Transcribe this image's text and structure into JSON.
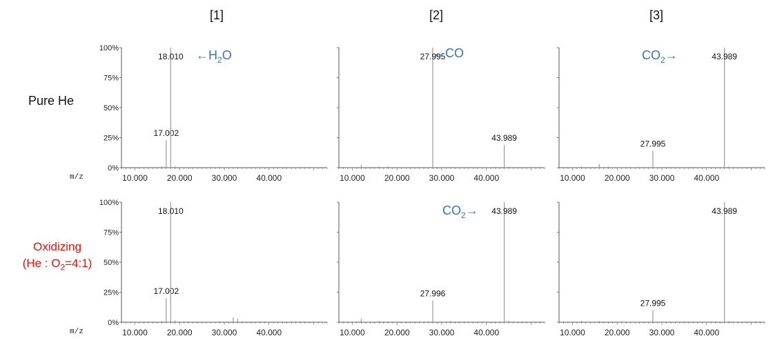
{
  "columns": [
    "[1]",
    "[2]",
    "[3]"
  ],
  "rows": {
    "pure": "Pure He",
    "oxidizing_line1": "Oxidizing",
    "oxidizing_line2_prefix": "(He : O",
    "oxidizing_line2_sub": "2",
    "oxidizing_line2_suffix": "=4:1)"
  },
  "axis_unit": "m/z",
  "colors": {
    "annotation": "#3a73b8",
    "oxidizing_label": "#e8130d",
    "axis": "#555555",
    "peak": "#9a9a9a"
  },
  "chart_data": [
    {
      "type": "bar",
      "panel": "pure-1",
      "x_ticks": [
        "10.000",
        "20.000",
        "30.000",
        "40.000"
      ],
      "y_ticks": [
        "0%",
        "25%",
        "50%",
        "75%",
        "100%"
      ],
      "xlim": [
        7,
        53
      ],
      "ylim": [
        0,
        100
      ],
      "peaks": [
        {
          "x": 17.002,
          "y": 23,
          "label": "17.002"
        },
        {
          "x": 18.01,
          "y": 100,
          "label": "18.010"
        },
        {
          "x": 16.0,
          "y": 1
        },
        {
          "x": 19.0,
          "y": 1
        },
        {
          "x": 28.0,
          "y": 0.5
        },
        {
          "x": 32.0,
          "y": 0.5
        }
      ],
      "annotation": {
        "prefix": "←H",
        "sub": "2",
        "suffix": "O"
      }
    },
    {
      "type": "bar",
      "panel": "pure-2",
      "x_ticks": [
        "10.000",
        "20.000",
        "30.000",
        "40.000"
      ],
      "xlim": [
        7,
        53
      ],
      "ylim": [
        0,
        100
      ],
      "peaks": [
        {
          "x": 27.995,
          "y": 100,
          "label": "27.995"
        },
        {
          "x": 43.989,
          "y": 19,
          "label": "43.989"
        },
        {
          "x": 12.0,
          "y": 2
        },
        {
          "x": 16.0,
          "y": 1
        },
        {
          "x": 18.0,
          "y": 1
        },
        {
          "x": 44.99,
          "y": 0.8
        }
      ],
      "annotation": {
        "prefix": "←CO",
        "sub": "",
        "suffix": ""
      }
    },
    {
      "type": "bar",
      "panel": "pure-3",
      "x_ticks": [
        "10.000",
        "20.000",
        "30.000",
        "40.000"
      ],
      "xlim": [
        7,
        53
      ],
      "ylim": [
        0,
        100
      ],
      "peaks": [
        {
          "x": 27.995,
          "y": 14,
          "label": "27.995"
        },
        {
          "x": 43.989,
          "y": 100,
          "label": "43.989"
        },
        {
          "x": 12.0,
          "y": 1
        },
        {
          "x": 15.99,
          "y": 3
        },
        {
          "x": 18.0,
          "y": 1
        },
        {
          "x": 44.99,
          "y": 1
        }
      ],
      "annotation": {
        "prefix": "CO",
        "sub": "2",
        "suffix": "→"
      }
    },
    {
      "type": "bar",
      "panel": "ox-1",
      "x_ticks": [
        "10.000",
        "20.000",
        "30.000",
        "40.000"
      ],
      "y_ticks": [
        "0%",
        "25%",
        "50%",
        "75%",
        "100%"
      ],
      "xlim": [
        7,
        53
      ],
      "ylim": [
        0,
        100
      ],
      "peaks": [
        {
          "x": 17.002,
          "y": 20,
          "label": "17.002"
        },
        {
          "x": 18.01,
          "y": 100,
          "label": "18.010"
        },
        {
          "x": 16.0,
          "y": 1
        },
        {
          "x": 19.0,
          "y": 1.5
        },
        {
          "x": 31.99,
          "y": 4
        },
        {
          "x": 32.99,
          "y": 3
        }
      ]
    },
    {
      "type": "bar",
      "panel": "ox-2",
      "x_ticks": [
        "10.000",
        "20.000",
        "30.000",
        "40.000"
      ],
      "xlim": [
        7,
        53
      ],
      "ylim": [
        0,
        100
      ],
      "peaks": [
        {
          "x": 27.996,
          "y": 18,
          "label": "27.996"
        },
        {
          "x": 43.989,
          "y": 100,
          "label": "43.989"
        },
        {
          "x": 12.0,
          "y": 3
        },
        {
          "x": 16.0,
          "y": 1
        },
        {
          "x": 32.0,
          "y": 1
        },
        {
          "x": 44.99,
          "y": 1
        }
      ],
      "annotation": {
        "prefix": "CO",
        "sub": "2",
        "suffix": "→"
      }
    },
    {
      "type": "bar",
      "panel": "ox-3",
      "x_ticks": [
        "10.000",
        "20.000",
        "30.000",
        "40.000"
      ],
      "xlim": [
        7,
        53
      ],
      "ylim": [
        0,
        100
      ],
      "peaks": [
        {
          "x": 27.995,
          "y": 10,
          "label": "27.995"
        },
        {
          "x": 43.989,
          "y": 100,
          "label": "43.989"
        },
        {
          "x": 12.0,
          "y": 1
        },
        {
          "x": 15.99,
          "y": 1
        },
        {
          "x": 44.99,
          "y": 1
        }
      ]
    }
  ]
}
